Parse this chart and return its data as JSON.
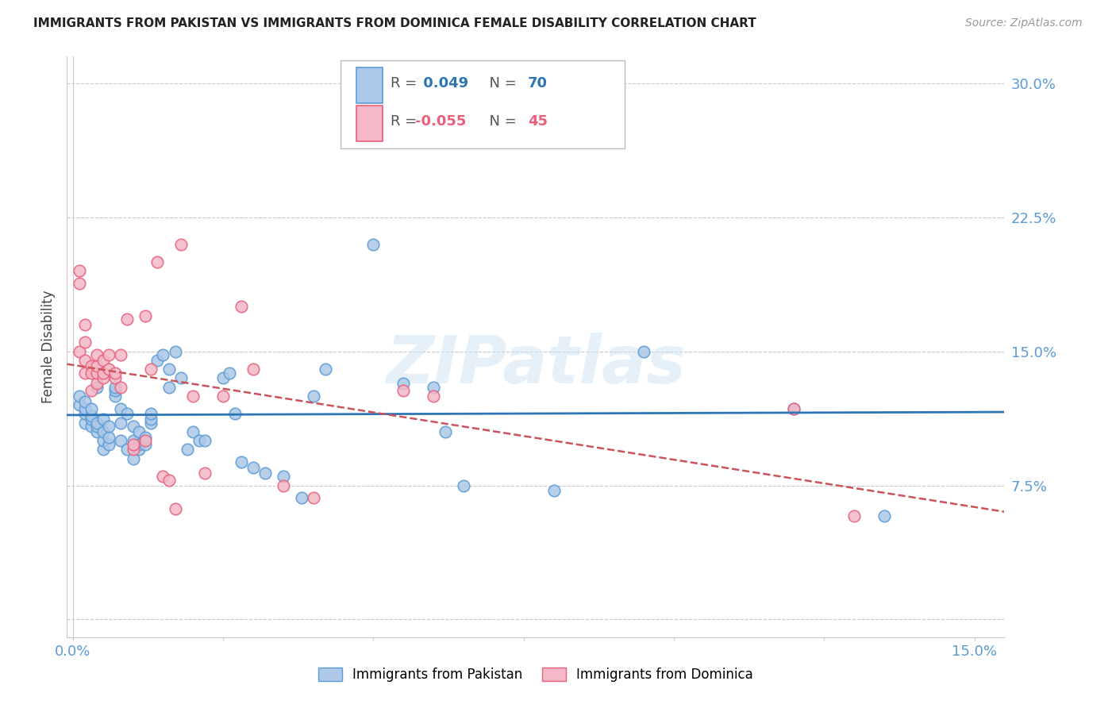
{
  "title": "IMMIGRANTS FROM PAKISTAN VS IMMIGRANTS FROM DOMINICA FEMALE DISABILITY CORRELATION CHART",
  "source": "Source: ZipAtlas.com",
  "ylabel": "Female Disability",
  "pakistan_color": "#adc8e8",
  "pakistan_edge_color": "#5b9bd5",
  "dominica_color": "#f4b8c8",
  "dominica_edge_color": "#e8607a",
  "pakistan_R": 0.049,
  "pakistan_N": 70,
  "dominica_R": -0.055,
  "dominica_N": 45,
  "trend_pakistan_color": "#2e75b6",
  "trend_dominica_color": "#c9545a",
  "background_color": "#ffffff",
  "grid_color": "#c8c8c8",
  "axis_label_color": "#5b9bd5",
  "xlim": [
    -0.001,
    0.155
  ],
  "ylim": [
    -0.01,
    0.315
  ],
  "yticks": [
    0.0,
    0.075,
    0.15,
    0.225,
    0.3
  ],
  "ytick_labels": [
    "",
    "7.5%",
    "15.0%",
    "22.5%",
    "30.0%"
  ],
  "pakistan_x": [
    0.001,
    0.001,
    0.002,
    0.002,
    0.002,
    0.002,
    0.003,
    0.003,
    0.003,
    0.003,
    0.004,
    0.004,
    0.004,
    0.004,
    0.005,
    0.005,
    0.005,
    0.005,
    0.006,
    0.006,
    0.006,
    0.007,
    0.007,
    0.007,
    0.008,
    0.008,
    0.008,
    0.009,
    0.009,
    0.01,
    0.01,
    0.01,
    0.011,
    0.011,
    0.011,
    0.012,
    0.012,
    0.013,
    0.013,
    0.013,
    0.014,
    0.015,
    0.016,
    0.016,
    0.017,
    0.018,
    0.019,
    0.02,
    0.021,
    0.022,
    0.025,
    0.026,
    0.027,
    0.028,
    0.03,
    0.032,
    0.035,
    0.038,
    0.04,
    0.042,
    0.048,
    0.05,
    0.055,
    0.06,
    0.062,
    0.065,
    0.08,
    0.095,
    0.12,
    0.135
  ],
  "pakistan_y": [
    0.12,
    0.125,
    0.11,
    0.115,
    0.118,
    0.122,
    0.108,
    0.112,
    0.114,
    0.118,
    0.105,
    0.108,
    0.11,
    0.13,
    0.095,
    0.1,
    0.105,
    0.112,
    0.098,
    0.102,
    0.108,
    0.125,
    0.128,
    0.13,
    0.1,
    0.11,
    0.118,
    0.095,
    0.115,
    0.09,
    0.1,
    0.108,
    0.095,
    0.098,
    0.105,
    0.098,
    0.102,
    0.11,
    0.112,
    0.115,
    0.145,
    0.148,
    0.13,
    0.14,
    0.15,
    0.135,
    0.095,
    0.105,
    0.1,
    0.1,
    0.135,
    0.138,
    0.115,
    0.088,
    0.085,
    0.082,
    0.08,
    0.068,
    0.125,
    0.14,
    0.28,
    0.21,
    0.132,
    0.13,
    0.105,
    0.075,
    0.072,
    0.15,
    0.118,
    0.058
  ],
  "dominica_x": [
    0.001,
    0.001,
    0.001,
    0.002,
    0.002,
    0.002,
    0.002,
    0.003,
    0.003,
    0.003,
    0.004,
    0.004,
    0.004,
    0.004,
    0.005,
    0.005,
    0.005,
    0.006,
    0.006,
    0.007,
    0.007,
    0.008,
    0.008,
    0.009,
    0.01,
    0.01,
    0.012,
    0.012,
    0.013,
    0.014,
    0.015,
    0.016,
    0.017,
    0.018,
    0.02,
    0.022,
    0.025,
    0.028,
    0.03,
    0.035,
    0.04,
    0.055,
    0.06,
    0.12,
    0.13
  ],
  "dominica_y": [
    0.195,
    0.188,
    0.15,
    0.165,
    0.155,
    0.145,
    0.138,
    0.142,
    0.138,
    0.128,
    0.132,
    0.138,
    0.142,
    0.148,
    0.135,
    0.138,
    0.145,
    0.14,
    0.148,
    0.135,
    0.138,
    0.13,
    0.148,
    0.168,
    0.095,
    0.098,
    0.1,
    0.17,
    0.14,
    0.2,
    0.08,
    0.078,
    0.062,
    0.21,
    0.125,
    0.082,
    0.125,
    0.175,
    0.14,
    0.075,
    0.068,
    0.128,
    0.125,
    0.118,
    0.058
  ]
}
